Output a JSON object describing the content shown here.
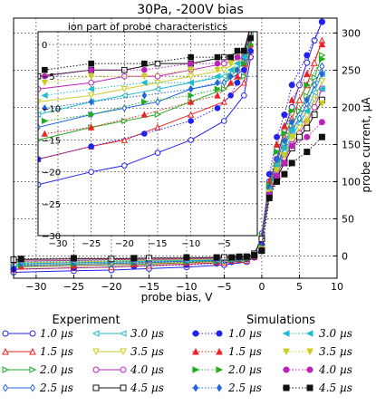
{
  "chart_data": {
    "type": "line",
    "title": "30Pa, -200V bias",
    "xlabel": "probe bias, V",
    "ylabel": "probe current, µA",
    "xlim": [
      -33,
      10
    ],
    "ylim": [
      -30,
      320
    ],
    "xticks": [
      "−30",
      "−25",
      "−20",
      "−15",
      "−10",
      "−5",
      "0",
      "5",
      "10"
    ],
    "yticks": [
      "0",
      "50",
      "100",
      "150",
      "200",
      "250",
      "300"
    ],
    "grid": true,
    "experiment": [
      {
        "name": "1.0 µs",
        "color": "#2222ee",
        "marker": "circle-open",
        "points": [
          [
            -33,
            -22
          ],
          [
            -25,
            -20
          ],
          [
            -20,
            -19
          ],
          [
            -15,
            -17
          ],
          [
            -10,
            -15
          ],
          [
            -5,
            -12
          ],
          [
            -2,
            -8
          ],
          [
            -1,
            -2
          ],
          [
            0,
            30
          ],
          [
            1,
            100
          ],
          [
            2,
            130
          ],
          [
            3,
            170
          ],
          [
            4,
            200
          ],
          [
            5,
            230
          ],
          [
            6,
            260
          ],
          [
            7,
            290
          ],
          [
            8,
            315
          ]
        ]
      },
      {
        "name": "1.5 µs",
        "color": "#ee2222",
        "marker": "triangle-up-open",
        "points": [
          [
            -33,
            -18
          ],
          [
            -25,
            -16
          ],
          [
            -20,
            -15
          ],
          [
            -15,
            -13
          ],
          [
            -10,
            -11
          ],
          [
            -5,
            -9
          ],
          [
            -2,
            -6
          ],
          [
            -1,
            -1
          ],
          [
            0,
            28
          ],
          [
            1,
            95
          ],
          [
            2,
            125
          ],
          [
            3,
            160
          ],
          [
            4,
            185
          ],
          [
            5,
            210
          ],
          [
            6,
            230
          ],
          [
            7,
            260
          ],
          [
            8,
            290
          ]
        ]
      },
      {
        "name": "2.0 µs",
        "color": "#22aa22",
        "marker": "triangle-right-open",
        "points": [
          [
            -33,
            -15
          ],
          [
            -25,
            -13
          ],
          [
            -20,
            -12
          ],
          [
            -15,
            -11
          ],
          [
            -10,
            -9
          ],
          [
            -5,
            -7
          ],
          [
            -2,
            -5
          ],
          [
            -1,
            0
          ],
          [
            0,
            27
          ],
          [
            1,
            92
          ],
          [
            2,
            120
          ],
          [
            3,
            150
          ],
          [
            4,
            175
          ],
          [
            5,
            195
          ],
          [
            6,
            215
          ],
          [
            7,
            240
          ],
          [
            8,
            270
          ]
        ]
      },
      {
        "name": "2.5 µs",
        "color": "#2266dd",
        "marker": "diamond-open",
        "points": [
          [
            -33,
            -13
          ],
          [
            -25,
            -11
          ],
          [
            -20,
            -10
          ],
          [
            -15,
            -9
          ],
          [
            -10,
            -7
          ],
          [
            -5,
            -6
          ],
          [
            -2,
            -4
          ],
          [
            -1,
            1
          ],
          [
            0,
            26
          ],
          [
            1,
            90
          ],
          [
            2,
            118
          ],
          [
            3,
            145
          ],
          [
            4,
            170
          ],
          [
            5,
            185
          ],
          [
            6,
            205
          ],
          [
            7,
            230
          ],
          [
            8,
            255
          ]
        ]
      },
      {
        "name": "3.0 µs",
        "color": "#22bbcc",
        "marker": "triangle-left-open",
        "points": [
          [
            -33,
            -11
          ],
          [
            -25,
            -9
          ],
          [
            -20,
            -8
          ],
          [
            -15,
            -7
          ],
          [
            -10,
            -6
          ],
          [
            -5,
            -5
          ],
          [
            -2,
            -3
          ],
          [
            -1,
            2
          ],
          [
            0,
            25
          ],
          [
            1,
            88
          ],
          [
            2,
            115
          ],
          [
            3,
            140
          ],
          [
            4,
            162
          ],
          [
            5,
            178
          ],
          [
            6,
            195
          ],
          [
            7,
            220
          ],
          [
            8,
            245
          ]
        ]
      },
      {
        "name": "3.5 µs",
        "color": "#cccc22",
        "marker": "triangle-down-open",
        "points": [
          [
            -33,
            -9
          ],
          [
            -25,
            -8
          ],
          [
            -20,
            -7
          ],
          [
            -15,
            -6
          ],
          [
            -10,
            -5
          ],
          [
            -5,
            -4
          ],
          [
            -2,
            -2
          ],
          [
            -1,
            2
          ],
          [
            0,
            24
          ],
          [
            1,
            86
          ],
          [
            2,
            112
          ],
          [
            3,
            135
          ],
          [
            4,
            155
          ],
          [
            5,
            172
          ],
          [
            6,
            188
          ],
          [
            7,
            210
          ],
          [
            8,
            235
          ]
        ]
      },
      {
        "name": "4.0 µs",
        "color": "#bb22bb",
        "marker": "circle-open",
        "points": [
          [
            -33,
            -7
          ],
          [
            -25,
            -6
          ],
          [
            -20,
            -5
          ],
          [
            -15,
            -5
          ],
          [
            -10,
            -4
          ],
          [
            -5,
            -3
          ],
          [
            -2,
            -2
          ],
          [
            -1,
            3
          ],
          [
            0,
            24
          ],
          [
            1,
            84
          ],
          [
            2,
            110
          ],
          [
            3,
            130
          ],
          [
            4,
            150
          ],
          [
            5,
            165
          ],
          [
            6,
            180
          ],
          [
            7,
            200
          ],
          [
            8,
            225
          ]
        ]
      },
      {
        "name": "4.5 µs",
        "color": "#111111",
        "marker": "square-open",
        "points": [
          [
            -33,
            -5
          ],
          [
            -25,
            -4
          ],
          [
            -20,
            -4
          ],
          [
            -15,
            -3
          ],
          [
            -10,
            -3
          ],
          [
            -5,
            -2
          ],
          [
            -2,
            -1
          ],
          [
            -1,
            3
          ],
          [
            0,
            23
          ],
          [
            1,
            82
          ],
          [
            2,
            105
          ],
          [
            3,
            125
          ],
          [
            4,
            145
          ],
          [
            5,
            160
          ],
          [
            6,
            172
          ],
          [
            7,
            190
          ],
          [
            8,
            210
          ]
        ]
      }
    ],
    "simulations": [
      {
        "name": "1.0 µs",
        "color": "#2222ee",
        "marker": "circle",
        "points": [
          [
            -33,
            -18
          ],
          [
            -25,
            -16
          ],
          [
            -17,
            -14
          ],
          [
            -10,
            -12
          ],
          [
            -6,
            -10
          ],
          [
            -4,
            -8
          ],
          [
            -3,
            -6
          ],
          [
            -2,
            -4
          ],
          [
            -1,
            -1
          ],
          [
            0,
            15
          ],
          [
            1,
            110
          ],
          [
            2,
            160
          ],
          [
            3,
            190
          ],
          [
            4,
            230
          ],
          [
            6,
            270
          ],
          [
            8,
            315
          ]
        ]
      },
      {
        "name": "1.5 µs",
        "color": "#ee2222",
        "marker": "triangle-up",
        "points": [
          [
            -32,
            -14
          ],
          [
            -25,
            -13
          ],
          [
            -17,
            -11
          ],
          [
            -10,
            -9
          ],
          [
            -6,
            -8
          ],
          [
            -4,
            -6
          ],
          [
            -3,
            -5
          ],
          [
            -2,
            -3
          ],
          [
            -1,
            0
          ],
          [
            0,
            13
          ],
          [
            1,
            100
          ],
          [
            2,
            150
          ],
          [
            3,
            175
          ],
          [
            4,
            210
          ],
          [
            6,
            245
          ],
          [
            8,
            285
          ]
        ]
      },
      {
        "name": "2.0 µs",
        "color": "#22aa22",
        "marker": "triangle-right",
        "points": [
          [
            -32,
            -12
          ],
          [
            -25,
            -11
          ],
          [
            -17,
            -9
          ],
          [
            -10,
            -8
          ],
          [
            -6,
            -7
          ],
          [
            -4,
            -5
          ],
          [
            -3,
            -4
          ],
          [
            -2,
            -3
          ],
          [
            -1,
            0
          ],
          [
            0,
            12
          ],
          [
            1,
            95
          ],
          [
            2,
            140
          ],
          [
            3,
            165
          ],
          [
            4,
            195
          ],
          [
            6,
            230
          ],
          [
            8,
            265
          ]
        ]
      },
      {
        "name": "2.5 µs",
        "color": "#2266dd",
        "marker": "diamond",
        "points": [
          [
            -32,
            -10
          ],
          [
            -25,
            -9
          ],
          [
            -17,
            -8
          ],
          [
            -10,
            -7
          ],
          [
            -6,
            -6
          ],
          [
            -4,
            -5
          ],
          [
            -3,
            -4
          ],
          [
            -2,
            -2
          ],
          [
            -1,
            1
          ],
          [
            0,
            11
          ],
          [
            1,
            92
          ],
          [
            2,
            130
          ],
          [
            3,
            155
          ],
          [
            4,
            180
          ],
          [
            6,
            210
          ],
          [
            8,
            245
          ]
        ]
      },
      {
        "name": "3.0 µs",
        "color": "#22bbcc",
        "marker": "triangle-left",
        "points": [
          [
            -32,
            -8
          ],
          [
            -25,
            -7
          ],
          [
            -17,
            -6
          ],
          [
            -10,
            -6
          ],
          [
            -6,
            -5
          ],
          [
            -4,
            -4
          ],
          [
            -3,
            -3
          ],
          [
            -2,
            -2
          ],
          [
            -1,
            1
          ],
          [
            0,
            10
          ],
          [
            1,
            88
          ],
          [
            2,
            122
          ],
          [
            3,
            145
          ],
          [
            4,
            170
          ],
          [
            6,
            195
          ],
          [
            8,
            225
          ]
        ]
      },
      {
        "name": "3.5 µs",
        "color": "#cccc22",
        "marker": "triangle-down",
        "points": [
          [
            -32,
            -6
          ],
          [
            -25,
            -5
          ],
          [
            -17,
            -5
          ],
          [
            -10,
            -4
          ],
          [
            -6,
            -4
          ],
          [
            -4,
            -3
          ],
          [
            -3,
            -2
          ],
          [
            -2,
            -1
          ],
          [
            -1,
            1
          ],
          [
            0,
            9
          ],
          [
            1,
            85
          ],
          [
            2,
            115
          ],
          [
            3,
            135
          ],
          [
            4,
            160
          ],
          [
            6,
            180
          ],
          [
            8,
            205
          ]
        ]
      },
      {
        "name": "4.0 µs",
        "color": "#bb22bb",
        "marker": "circle",
        "points": [
          [
            -32,
            -5
          ],
          [
            -25,
            -4
          ],
          [
            -17,
            -4
          ],
          [
            -10,
            -3
          ],
          [
            -6,
            -3
          ],
          [
            -4,
            -2
          ],
          [
            -3,
            -2
          ],
          [
            -2,
            -1
          ],
          [
            -1,
            1
          ],
          [
            0,
            8
          ],
          [
            1,
            82
          ],
          [
            2,
            108
          ],
          [
            3,
            125
          ],
          [
            4,
            148
          ],
          [
            6,
            160
          ],
          [
            8,
            180
          ]
        ]
      },
      {
        "name": "4.5 µs",
        "color": "#111111",
        "marker": "square",
        "points": [
          [
            -32,
            -4
          ],
          [
            -25,
            -3
          ],
          [
            -17,
            -3
          ],
          [
            -10,
            -2
          ],
          [
            -6,
            -2
          ],
          [
            -4,
            -2
          ],
          [
            -3,
            -1
          ],
          [
            -2,
            -1
          ],
          [
            -1,
            1
          ],
          [
            0,
            7
          ],
          [
            1,
            78
          ],
          [
            2,
            100
          ],
          [
            3,
            110
          ],
          [
            4,
            125
          ],
          [
            6,
            140
          ],
          [
            8,
            160
          ]
        ]
      }
    ],
    "inset": {
      "title": "ion part of probe characteristics",
      "xlim": [
        -33,
        0
      ],
      "ylim": [
        -30,
        2
      ],
      "xticks": [
        "−30",
        "−25",
        "−20",
        "−15",
        "−10",
        "−5"
      ],
      "yticks": [
        "0",
        "−5",
        "−10",
        "−15",
        "−20",
        "−25",
        "−30"
      ],
      "grid": true
    },
    "legend": {
      "experiment_title": "Experiment",
      "simulations_title": "Simulations",
      "placement": "bottom"
    }
  }
}
